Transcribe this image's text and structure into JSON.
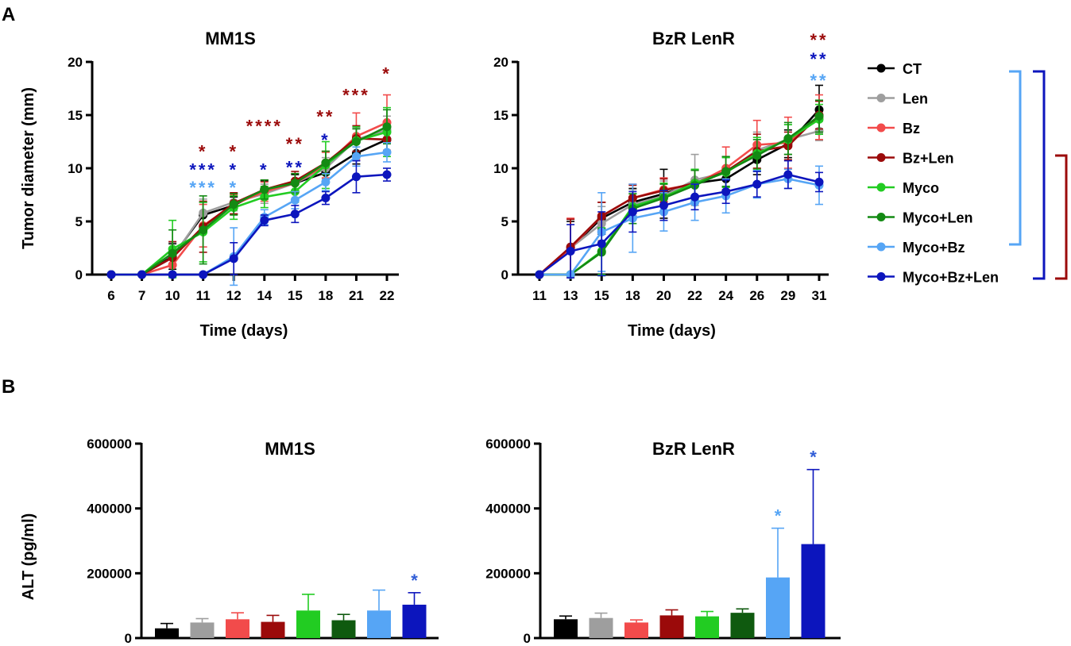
{
  "panel_labels": {
    "a": "A",
    "b": "B"
  },
  "legend": [
    {
      "name": "CT",
      "color": "#000000"
    },
    {
      "name": "Len",
      "color": "#9e9e9e"
    },
    {
      "name": "Bz",
      "color": "#f24b4b"
    },
    {
      "name": "Bz+Len",
      "color": "#9b0a0a"
    },
    {
      "name": "Myco",
      "color": "#22cc22"
    },
    {
      "name": "Myco+Len",
      "color": "#138a13"
    },
    {
      "name": "Myco+Bz",
      "color": "#56a5f5"
    },
    {
      "name": "Myco+Bz+Len",
      "color": "#0c15bd"
    }
  ],
  "bracket_colors": {
    "myco_bz": "#56a5f5",
    "myco_bz_len": "#0c15bd",
    "bz_len": "#9b0a0a"
  },
  "chart_data": [
    {
      "id": "line-mm1s",
      "type": "line",
      "title": "MM1S",
      "xlabel": "Time (days)",
      "ylabel": "Tumor diameter (mm)",
      "categories": [
        "6",
        "7",
        "10",
        "11",
        "12",
        "14",
        "15",
        "18",
        "21",
        "22"
      ],
      "ylim": [
        0,
        20
      ],
      "yticks": [
        0,
        5,
        10,
        15,
        20
      ],
      "series": [
        {
          "name": "CT",
          "color": "#000000",
          "values": [
            0,
            0,
            1.7,
            5.6,
            6.5,
            8.0,
            8.6,
            9.6,
            11.4,
            12.7
          ],
          "err": [
            0,
            0,
            1.2,
            1.2,
            0.8,
            0.8,
            0.8,
            0.9,
            1.0,
            1.2
          ]
        },
        {
          "name": "Len",
          "color": "#9e9e9e",
          "values": [
            0,
            0,
            1.6,
            5.8,
            6.8,
            7.6,
            8.6,
            10.0,
            12.7,
            13.6
          ],
          "err": [
            0,
            0,
            1.4,
            1.3,
            0.8,
            0.9,
            0.9,
            1.0,
            1.1,
            1.3
          ]
        },
        {
          "name": "Bz",
          "color": "#f24b4b",
          "values": [
            0,
            0,
            0.9,
            4.6,
            6.6,
            7.8,
            8.6,
            10.3,
            13.0,
            14.3
          ],
          "err": [
            0,
            0,
            0.8,
            2.0,
            0.9,
            0.9,
            0.9,
            1.2,
            2.2,
            2.6
          ]
        },
        {
          "name": "Bz+Len",
          "color": "#9b0a0a",
          "values": [
            0,
            0,
            1.6,
            4.5,
            6.7,
            8.0,
            8.8,
            10.5,
            12.8,
            12.7
          ],
          "err": [
            0,
            0,
            1.5,
            2.4,
            1.0,
            0.9,
            0.9,
            1.1,
            1.2,
            1.2
          ]
        },
        {
          "name": "Myco",
          "color": "#22cc22",
          "values": [
            0,
            0,
            2.4,
            4.0,
            6.3,
            7.3,
            7.8,
            10.3,
            12.6,
            13.4
          ],
          "err": [
            0,
            0,
            2.7,
            2.8,
            1.1,
            1.0,
            1.0,
            2.2,
            1.3,
            2.3
          ]
        },
        {
          "name": "Myco+Len",
          "color": "#138a13",
          "values": [
            0,
            0,
            2.0,
            4.2,
            6.6,
            8.0,
            8.6,
            10.5,
            12.5,
            13.9
          ],
          "err": [
            0,
            0,
            2.2,
            3.2,
            1.0,
            0.9,
            0.9,
            1.1,
            1.2,
            1.6
          ]
        },
        {
          "name": "Myco+Bz",
          "color": "#56a5f5",
          "values": [
            0,
            0,
            0,
            0,
            1.7,
            5.4,
            7.0,
            8.7,
            11.1,
            11.5
          ],
          "err": [
            0,
            0,
            0,
            0,
            2.7,
            0.7,
            0.8,
            0.8,
            0.9,
            0.9
          ]
        },
        {
          "name": "Myco+Bz+Len",
          "color": "#0c15bd",
          "values": [
            0,
            0,
            0,
            0,
            1.5,
            5.1,
            5.7,
            7.2,
            9.2,
            9.4
          ],
          "err": [
            0,
            0,
            0,
            0,
            1.5,
            0.5,
            0.8,
            0.6,
            1.5,
            0.6
          ]
        }
      ],
      "annotations": [
        {
          "category": "11",
          "color": "#9b0a0a",
          "text": "*",
          "y": 11.9
        },
        {
          "category": "11",
          "color": "#0c15bd",
          "text": "***",
          "y": 10.2
        },
        {
          "category": "11",
          "color": "#56a5f5",
          "text": "***",
          "y": 8.5
        },
        {
          "category": "12",
          "color": "#9b0a0a",
          "text": "*",
          "y": 11.9
        },
        {
          "category": "12",
          "color": "#0c15bd",
          "text": "*",
          "y": 10.2
        },
        {
          "category": "12",
          "color": "#56a5f5",
          "text": "*",
          "y": 8.5
        },
        {
          "category": "14",
          "color": "#0c15bd",
          "text": "*",
          "y": 10.2
        },
        {
          "category": "14",
          "color": "#9b0a0a",
          "text": "****",
          "y": 14.3
        },
        {
          "category": "15",
          "color": "#9b0a0a",
          "text": "**",
          "y": 12.6
        },
        {
          "category": "15",
          "color": "#0c15bd",
          "text": "**",
          "y": 10.4
        },
        {
          "category": "18",
          "color": "#9b0a0a",
          "text": "**",
          "y": 15.2
        },
        {
          "category": "18",
          "color": "#0c15bd",
          "text": "*",
          "y": 13.0
        },
        {
          "category": "21",
          "color": "#9b0a0a",
          "text": "***",
          "y": 17.2
        },
        {
          "category": "22",
          "color": "#9b0a0a",
          "text": "*",
          "y": 19.2
        }
      ]
    },
    {
      "id": "line-bzrlenr",
      "type": "line",
      "title": "BzR LenR",
      "xlabel": "Time (days)",
      "ylabel": "",
      "categories": [
        "11",
        "13",
        "15",
        "18",
        "20",
        "22",
        "24",
        "26",
        "29",
        "31"
      ],
      "ylim": [
        0,
        20
      ],
      "yticks": [
        0,
        5,
        10,
        15,
        20
      ],
      "series": [
        {
          "name": "CT",
          "color": "#000000",
          "values": [
            0,
            2.5,
            5.3,
            6.8,
            7.6,
            8.6,
            9.0,
            10.8,
            12.3,
            15.5
          ],
          "err": [
            0,
            2.5,
            1.5,
            1.3,
            2.3,
            1.3,
            1.1,
            1.4,
            1.3,
            2.3
          ]
        },
        {
          "name": "Len",
          "color": "#9e9e9e",
          "values": [
            0,
            2.5,
            4.8,
            6.6,
            7.4,
            8.9,
            9.6,
            11.7,
            12.7,
            13.5
          ],
          "err": [
            0,
            2.7,
            1.6,
            1.4,
            1.4,
            2.4,
            1.4,
            1.7,
            1.4,
            0.9
          ]
        },
        {
          "name": "Bz",
          "color": "#f24b4b",
          "values": [
            0,
            2.5,
            5.5,
            7.2,
            8.0,
            8.5,
            10.0,
            12.2,
            12.4,
            14.8
          ],
          "err": [
            0,
            2.8,
            1.3,
            1.3,
            1.1,
            1.3,
            2.0,
            2.3,
            2.4,
            2.1
          ]
        },
        {
          "name": "Bz+Len",
          "color": "#9b0a0a",
          "values": [
            0,
            2.6,
            5.5,
            7.2,
            7.9,
            8.6,
            9.7,
            11.6,
            12.1,
            15.0
          ],
          "err": [
            0,
            2.6,
            1.3,
            1.2,
            1.1,
            1.2,
            1.4,
            1.6,
            1.3,
            1.3
          ]
        },
        {
          "name": "Myco",
          "color": "#22cc22",
          "values": [
            0,
            0,
            2.2,
            6.4,
            7.3,
            8.6,
            9.6,
            11.4,
            12.7,
            14.6
          ],
          "err": [
            0,
            0,
            2.2,
            1.2,
            1.3,
            1.3,
            1.4,
            1.5,
            1.4,
            1.4
          ]
        },
        {
          "name": "Myco+Len",
          "color": "#138a13",
          "values": [
            0,
            0,
            2.1,
            6.2,
            7.2,
            8.4,
            9.7,
            11.2,
            12.8,
            14.9
          ],
          "err": [
            0,
            0,
            2.2,
            1.4,
            1.3,
            1.4,
            1.4,
            1.5,
            1.5,
            1.5
          ]
        },
        {
          "name": "Myco+Bz",
          "color": "#56a5f5",
          "values": [
            0,
            0,
            4.0,
            5.3,
            5.9,
            6.8,
            7.4,
            8.5,
            9.0,
            8.4
          ],
          "err": [
            0,
            0,
            3.7,
            3.2,
            1.8,
            1.7,
            1.6,
            1.3,
            0.9,
            1.8
          ]
        },
        {
          "name": "Myco+Bz+Len",
          "color": "#0c15bd",
          "values": [
            0,
            2.2,
            2.9,
            5.9,
            6.5,
            7.3,
            7.8,
            8.5,
            9.4,
            8.7
          ],
          "err": [
            0,
            2.5,
            3.0,
            1.9,
            1.4,
            1.2,
            1.1,
            1.2,
            1.3,
            0.9
          ]
        }
      ],
      "annotations": [
        {
          "category": "31",
          "color": "#9b0a0a",
          "text": "**",
          "y": 22.4
        },
        {
          "category": "31",
          "color": "#0c15bd",
          "text": "**",
          "y": 20.6
        },
        {
          "category": "31",
          "color": "#56a5f5",
          "text": "**",
          "y": 18.6
        }
      ]
    },
    {
      "id": "bar-mm1s",
      "type": "bar",
      "title": "MM1S",
      "xlabel": "",
      "ylabel": "ALT (pg/ml)",
      "categories": [
        "CT",
        "Len",
        "Bz",
        "Bz+Len",
        "Myco",
        "Myco+Len",
        "Myco+Bz",
        "Myco+Bz+Len"
      ],
      "colors": [
        "#000000",
        "#9e9e9e",
        "#f24b4b",
        "#9b0a0a",
        "#22cc22",
        "#0f5a0f",
        "#56a5f5",
        "#0c15bd"
      ],
      "values": [
        30000,
        48000,
        58000,
        50000,
        85000,
        55000,
        85000,
        103000
      ],
      "err": [
        15000,
        12000,
        20000,
        20000,
        50000,
        18000,
        63000,
        37000
      ],
      "ylim": [
        0,
        600000
      ],
      "yticks": [
        0,
        200000,
        400000,
        600000
      ],
      "annotations": [
        {
          "index": 7,
          "text": "*",
          "color": "#2f5cd6"
        }
      ]
    },
    {
      "id": "bar-bzrlenr",
      "type": "bar",
      "title": "BzR LenR",
      "xlabel": "",
      "ylabel": "",
      "categories": [
        "CT",
        "Len",
        "Bz",
        "Bz+Len",
        "Myco",
        "Myco+Len",
        "Myco+Bz",
        "Myco+Bz+Len"
      ],
      "colors": [
        "#000000",
        "#9e9e9e",
        "#f24b4b",
        "#9b0a0a",
        "#22cc22",
        "#0f5a0f",
        "#56a5f5",
        "#0c15bd"
      ],
      "values": [
        58000,
        62000,
        48000,
        70000,
        67000,
        78000,
        187000,
        290000
      ],
      "err": [
        10000,
        15000,
        8000,
        17000,
        15000,
        12000,
        152000,
        230000
      ],
      "ylim": [
        0,
        600000
      ],
      "yticks": [
        0,
        200000,
        400000,
        600000
      ],
      "annotations": [
        {
          "index": 6,
          "text": "*",
          "color": "#56a5f5"
        },
        {
          "index": 7,
          "text": "*",
          "color": "#2f5cd6"
        }
      ]
    }
  ]
}
